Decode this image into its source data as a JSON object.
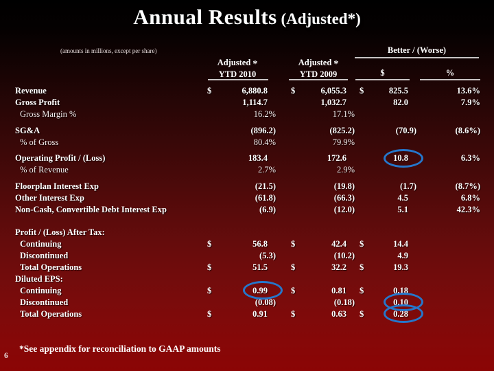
{
  "slide": {
    "title_main": "Annual Results",
    "title_suffix": " (Adjusted*)",
    "units_note": "(amounts in millions, except per share)",
    "footnote": "*See appendix for reconciliation to GAAP amounts",
    "page_number": "6"
  },
  "colors": {
    "circle": "#2577cb",
    "background_top": "#000000",
    "background_bottom": "#8b0505"
  },
  "table": {
    "headers": {
      "better_worse": "Better / (Worse)",
      "col2010_line1": "Adjusted",
      "col2010_star": "*",
      "col2010_line2": "YTD 2010",
      "col2009_line1": "Adjusted",
      "col2009_star": "*",
      "col2009_line2": "YTD 2009",
      "better_dollar": "$",
      "better_percent": "%"
    },
    "rows": [
      {
        "label": "Revenue",
        "d1": "$",
        "v1": "6,880.8",
        "d2": "$",
        "v2": "6,055.3",
        "d3": "$",
        "v3": "825.5",
        "v4": "13.6%"
      },
      {
        "label": "Gross Profit",
        "v1": "1,114.7",
        "v2": "1,032.7",
        "v3": "82.0",
        "v4": "7.9%"
      },
      {
        "label": "Gross Margin %",
        "light": true,
        "indent": true,
        "v1": "16.2%",
        "v2": "17.1%"
      },
      {
        "label": "SG&A",
        "gap": "s",
        "v1": "(896.2)",
        "v2": "(825.2)",
        "v3": "(70.9)",
        "v4": "(8.6%)"
      },
      {
        "label": "% of Gross",
        "light": true,
        "indent": true,
        "v1": "80.4%",
        "v2": "79.9%"
      },
      {
        "label": "Operating Profit / (Loss)",
        "gap": "s",
        "v1": "183.4",
        "v2": "172.6",
        "v3": "10.8",
        "v4": "6.3%"
      },
      {
        "label": "% of Revenue",
        "light": true,
        "indent": true,
        "v1": "2.7%",
        "v2": "2.9%"
      },
      {
        "label": "Floorplan Interest Exp",
        "gap": "s",
        "v1": "(21.5)",
        "v2": "(19.8)",
        "v3": "(1.7)",
        "v4": "(8.7%)"
      },
      {
        "label": "Other Interest Exp",
        "v1": "(61.8)",
        "v2": "(66.3)",
        "v3": "4.5",
        "v4": "6.8%"
      },
      {
        "label": "Non-Cash, Convertible Debt Interest Exp",
        "v1": "(6.9)",
        "v2": "(12.0)",
        "v3": "5.1",
        "v4": "42.3%"
      },
      {
        "label": "Profit / (Loss) After Tax:",
        "gap": "l"
      },
      {
        "label": "Continuing",
        "indent": true,
        "d1": "$",
        "v1": "56.8",
        "d2": "$",
        "v2": "42.4",
        "d3": "$",
        "v3": "14.4"
      },
      {
        "label": "Discontinued",
        "indent": true,
        "v1": "(5.3)",
        "v2": "(10.2)",
        "v3": "4.9"
      },
      {
        "label": "Total Operations",
        "indent": true,
        "d1": "$",
        "v1": "51.5",
        "d2": "$",
        "v2": "32.2",
        "d3": "$",
        "v3": "19.3"
      },
      {
        "label": "Diluted EPS:"
      },
      {
        "label": "Continuing",
        "indent": true,
        "d1": "$",
        "v1": "0.99",
        "d2": "$",
        "v2": "0.81",
        "d3": "$",
        "v3": "0.18"
      },
      {
        "label": "Discontinued",
        "indent": true,
        "v1": "(0.08)",
        "v2": "(0.18)",
        "v3": "0.10"
      },
      {
        "label": "Total Operations",
        "indent": true,
        "d1": "$",
        "v1": "0.91",
        "d2": "$",
        "v2": "0.63",
        "d3": "$",
        "v3": "0.28"
      }
    ],
    "circled_cells": [
      {
        "row": 5,
        "cell": "v3"
      },
      {
        "row": 15,
        "cell": "v1"
      },
      {
        "row": 16,
        "cell": "v3"
      },
      {
        "row": 17,
        "cell": "v3"
      }
    ]
  }
}
